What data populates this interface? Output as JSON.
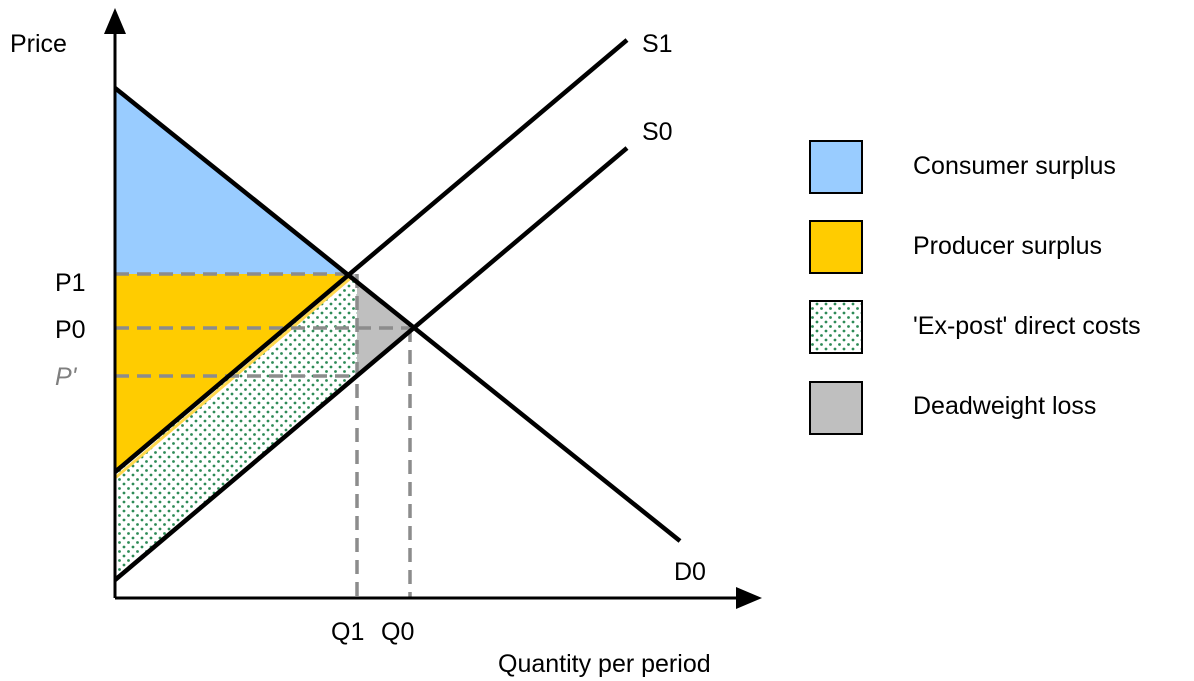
{
  "diagram": {
    "axes": {
      "y_label": "Price",
      "x_label": "Quantity per period"
    },
    "curves": {
      "supply_new": "S1",
      "supply_original": "S0",
      "demand": "D0"
    },
    "price_levels": {
      "p1": "P1",
      "p0": "P0",
      "p_prime": "P'"
    },
    "quantity_levels": {
      "q1": "Q1",
      "q0": "Q0"
    },
    "legend": [
      {
        "label": "Consumer surplus",
        "color": "#99ccff",
        "pattern": "solid"
      },
      {
        "label": "Producer surplus",
        "color": "#ffcc00",
        "pattern": "solid"
      },
      {
        "label": "'Ex-post' direct costs",
        "color": "#2e8b57",
        "pattern": "dotted"
      },
      {
        "label": "Deadweight loss",
        "color": "#bfbfbf",
        "pattern": "solid"
      }
    ]
  }
}
